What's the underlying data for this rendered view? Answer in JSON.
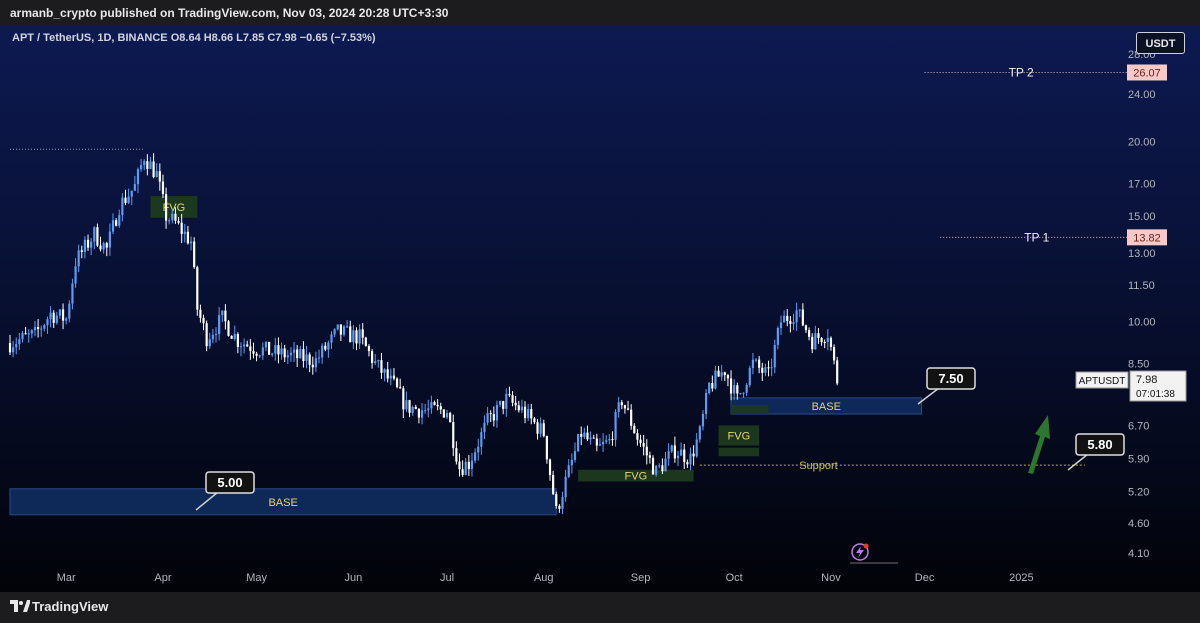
{
  "header": {
    "publish_line": "armanb_crypto published on TradingView.com, Nov 03, 2024 20:28 UTC+3:30"
  },
  "symbol": {
    "title": "APT / TetherUS, 1D, BINANCE",
    "ohlc": "O8.64  H8.66  L7.85  C7.98  −0.65 (−7.53%)",
    "currency_button": "USDT",
    "ticker_tag": "APTUSDT",
    "last_price": "7.98",
    "countdown": "07:01:38"
  },
  "footer": {
    "brand": "TradingView"
  },
  "colors": {
    "background_top": "#0d1a52",
    "background_bottom": "#02040a",
    "candle_up": "#5b9cf6",
    "candle_down": "#ffffff",
    "base_zone": "#0f2a5c",
    "fvg_zone": "#1d3a1d",
    "tp_label": "#f7c9c9",
    "tp_label_text": "#6b1d1d",
    "support_text": "#c9c24e",
    "arrow": "#2e7d32"
  },
  "chart_data": {
    "type": "candlestick",
    "title": "APT / TetherUS, 1D, BINANCE",
    "y_scale": "log",
    "ylim": [
      3.9,
      30
    ],
    "y_ticks": [
      "28.00",
      "24.00",
      "20.00",
      "17.00",
      "15.00",
      "13.00",
      "11.50",
      "10.00",
      "8.50",
      "6.70",
      "5.90",
      "5.20",
      "4.60",
      "4.10"
    ],
    "x_ticks": [
      "Mar",
      "Apr",
      "May",
      "Jun",
      "Jul",
      "Aug",
      "Sep",
      "Oct",
      "Nov",
      "Dec",
      "2025"
    ],
    "x_range": [
      "2024-02-12",
      "2025-01-31"
    ],
    "price_anchors": [
      {
        "date": "2024-02-12",
        "price": 9.2
      },
      {
        "date": "2024-02-20",
        "price": 9.5
      },
      {
        "date": "2024-02-25",
        "price": 10.3
      },
      {
        "date": "2024-03-01",
        "price": 10.1
      },
      {
        "date": "2024-03-04",
        "price": 12.6
      },
      {
        "date": "2024-03-10",
        "price": 14.0
      },
      {
        "date": "2024-03-14",
        "price": 13.2
      },
      {
        "date": "2024-03-18",
        "price": 15.6
      },
      {
        "date": "2024-03-23",
        "price": 16.8
      },
      {
        "date": "2024-03-26",
        "price": 18.9
      },
      {
        "date": "2024-03-30",
        "price": 17.6
      },
      {
        "date": "2024-04-02",
        "price": 15.0
      },
      {
        "date": "2024-04-05",
        "price": 14.6
      },
      {
        "date": "2024-04-10",
        "price": 13.6
      },
      {
        "date": "2024-04-12",
        "price": 10.5
      },
      {
        "date": "2024-04-15",
        "price": 9.4
      },
      {
        "date": "2024-04-20",
        "price": 10.1
      },
      {
        "date": "2024-04-25",
        "price": 9.3
      },
      {
        "date": "2024-05-01",
        "price": 9.0
      },
      {
        "date": "2024-05-10",
        "price": 8.8
      },
      {
        "date": "2024-05-20",
        "price": 8.6
      },
      {
        "date": "2024-05-27",
        "price": 9.6
      },
      {
        "date": "2024-06-03",
        "price": 9.4
      },
      {
        "date": "2024-06-08",
        "price": 8.5
      },
      {
        "date": "2024-06-14",
        "price": 7.8
      },
      {
        "date": "2024-06-18",
        "price": 7.2
      },
      {
        "date": "2024-06-24",
        "price": 7.1
      },
      {
        "date": "2024-07-01",
        "price": 7.1
      },
      {
        "date": "2024-07-05",
        "price": 5.7
      },
      {
        "date": "2024-07-08",
        "price": 5.8
      },
      {
        "date": "2024-07-14",
        "price": 6.8
      },
      {
        "date": "2024-07-20",
        "price": 7.4
      },
      {
        "date": "2024-07-25",
        "price": 7.1
      },
      {
        "date": "2024-08-01",
        "price": 6.5
      },
      {
        "date": "2024-08-05",
        "price": 4.8
      },
      {
        "date": "2024-08-08",
        "price": 5.4
      },
      {
        "date": "2024-08-13",
        "price": 6.5
      },
      {
        "date": "2024-08-18",
        "price": 6.1
      },
      {
        "date": "2024-08-22",
        "price": 6.3
      },
      {
        "date": "2024-08-26",
        "price": 7.4
      },
      {
        "date": "2024-08-31",
        "price": 6.4
      },
      {
        "date": "2024-09-06",
        "price": 5.6
      },
      {
        "date": "2024-09-12",
        "price": 6.1
      },
      {
        "date": "2024-09-17",
        "price": 5.9
      },
      {
        "date": "2024-09-20",
        "price": 6.5
      },
      {
        "date": "2024-09-23",
        "price": 7.8
      },
      {
        "date": "2024-09-28",
        "price": 8.3
      },
      {
        "date": "2024-10-02",
        "price": 7.4
      },
      {
        "date": "2024-10-07",
        "price": 8.5
      },
      {
        "date": "2024-10-12",
        "price": 8.1
      },
      {
        "date": "2024-10-16",
        "price": 10.0
      },
      {
        "date": "2024-10-21",
        "price": 10.4
      },
      {
        "date": "2024-10-26",
        "price": 9.3
      },
      {
        "date": "2024-10-31",
        "price": 9.6
      },
      {
        "date": "2024-11-03",
        "price": 7.98
      }
    ],
    "levels": [
      {
        "label": "TP 2",
        "value": "26.07",
        "price": 26.07
      },
      {
        "label": "TP 1",
        "value": "13.82",
        "price": 13.82
      }
    ],
    "zones": [
      {
        "label": "BASE",
        "from": "2024-02-12",
        "to": "2024-08-05",
        "low": 4.75,
        "high": 5.25
      },
      {
        "label": "BASE",
        "from": "2024-09-30",
        "to": "2024-11-30",
        "low": 7.0,
        "high": 7.45
      },
      {
        "label": "FVG",
        "from": "2024-03-28",
        "to": "2024-04-12",
        "low": 14.9,
        "high": 16.2
      },
      {
        "label": "FVG",
        "from": "2024-08-12",
        "to": "2024-09-18",
        "low": 5.4,
        "high": 5.65
      },
      {
        "label": "FVG",
        "from": "2024-09-26",
        "to": "2024-10-09",
        "low": 6.2,
        "high": 6.7
      },
      {
        "label": "",
        "from": "2024-09-26",
        "to": "2024-10-09",
        "low": 5.95,
        "high": 6.15
      },
      {
        "label": "",
        "from": "2024-09-30",
        "to": "2024-10-12",
        "low": 7.0,
        "high": 7.25
      }
    ],
    "callouts": [
      {
        "text": "5.00",
        "price": 5.0
      },
      {
        "text": "7.50",
        "price": 7.5
      },
      {
        "text": "5.80",
        "price": 5.8
      }
    ],
    "support_label": "Support",
    "support_price": 5.75
  }
}
